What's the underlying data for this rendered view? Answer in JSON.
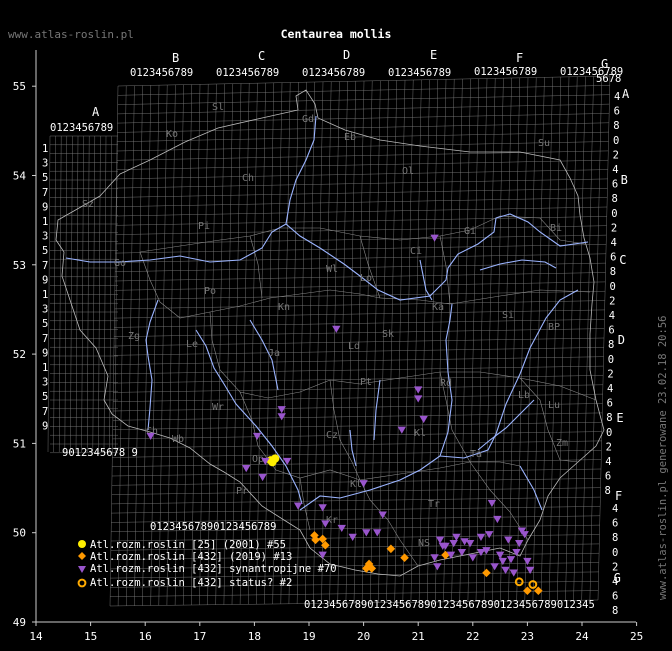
{
  "header": {
    "site": "www.atlas-roslin.pl",
    "title": "Centaurea mollis",
    "footer": "www.atlas-roslin.pl generowane 23.02.18 20:56"
  },
  "axes": {
    "lon_ticks": [
      "14",
      "15",
      "16",
      "17",
      "18",
      "19",
      "20",
      "21",
      "22",
      "23",
      "24",
      "25"
    ],
    "lat_ticks": [
      "49",
      "50",
      "51",
      "52",
      "53",
      "54",
      "55"
    ]
  },
  "grid": {
    "top_letters": [
      "A",
      "B",
      "C",
      "D",
      "E",
      "F",
      "G"
    ],
    "right_letters": [
      "A",
      "B",
      "C",
      "D",
      "E",
      "F",
      "G"
    ],
    "top_digits": "0123456789",
    "left_digits": [
      "1",
      "3",
      "5",
      "7",
      "9",
      "1",
      "3",
      "5",
      "7",
      "9",
      "1",
      "3",
      "5",
      "7",
      "9",
      "1",
      "3",
      "5",
      "7",
      "9"
    ],
    "right_digits": [
      "4",
      "6",
      "8",
      "0",
      "2",
      "4",
      "6",
      "8",
      "0",
      "2",
      "4",
      "6",
      "8",
      "0",
      "2",
      "4",
      "6",
      "8",
      "0",
      "2",
      "4",
      "6",
      "8",
      "0",
      "2",
      "4",
      "6",
      "8"
    ],
    "lower_right_digits": [
      "4",
      "6",
      "8",
      "0",
      "2",
      "4",
      "6",
      "8"
    ],
    "row_a_digits": "0123456789",
    "row_9_digits": "9012345678 9",
    "row_50_digits": "01234567890123456789",
    "bottom_digits": "0123456789012345678901234567890123456789012345",
    "region_codes": [
      {
        "label": "Gd"
      },
      {
        "label": "Eb"
      },
      {
        "label": "Sl"
      },
      {
        "label": "Ko"
      },
      {
        "label": "Su"
      },
      {
        "label": "Ch"
      },
      {
        "label": "Ol"
      },
      {
        "label": "Sz"
      },
      {
        "label": "Pi"
      },
      {
        "label": "Ci"
      },
      {
        "label": "Gi"
      },
      {
        "label": "Bi"
      },
      {
        "label": "Go"
      },
      {
        "label": "Wl"
      },
      {
        "label": "Po"
      },
      {
        "label": "Kn"
      },
      {
        "label": "Zg"
      },
      {
        "label": "Le"
      },
      {
        "label": "Lo"
      },
      {
        "label": "Sk"
      },
      {
        "label": "Ka"
      },
      {
        "label": "Ld"
      },
      {
        "label": "Si"
      },
      {
        "label": "BP"
      },
      {
        "label": "Rd"
      },
      {
        "label": "Pt"
      },
      {
        "label": "Lu"
      },
      {
        "label": "Lb"
      },
      {
        "label": "Wr"
      },
      {
        "label": "Ja"
      },
      {
        "label": "Cz"
      },
      {
        "label": "Kl"
      },
      {
        "label": "Ch"
      },
      {
        "label": "Wb"
      },
      {
        "label": "Op"
      },
      {
        "label": "Zm"
      },
      {
        "label": "Kt"
      },
      {
        "label": "Ta"
      },
      {
        "label": "Kr"
      },
      {
        "label": "Tr"
      },
      {
        "label": "NS"
      },
      {
        "label": "Pr"
      }
    ]
  },
  "legend": [
    {
      "label": "Atl.rozm.roslin [25] (2001) #55",
      "marker": "dot-yellow",
      "color": "#ffee00"
    },
    {
      "label": "Atl.rozm.roslin [432] (2019) #13",
      "marker": "diamond-orange",
      "color": "#ff9900"
    },
    {
      "label": "Atl.rozm.roslin [432] synantropijne #70",
      "marker": "triangle-purple",
      "color": "#9955cc"
    },
    {
      "label": "Atl.rozm.roslin [432] status? #2",
      "marker": "ring-orange",
      "color": "#ffaa00"
    }
  ],
  "colors": {
    "background": "#000000",
    "grid": "#9a9a9a",
    "border": "#bbbbbb",
    "river": "#9bb4ff",
    "text": "#ffffff"
  },
  "chart_data": {
    "type": "scatter",
    "xlabel": "",
    "ylabel": "",
    "xlim": [
      14,
      25
    ],
    "ylim": [
      49,
      55.5
    ],
    "series": [
      {
        "name": "Atl.rozm.roslin [25] (2001) #55",
        "marker": "dot",
        "points": [
          [
            18.3,
            50.81
          ],
          [
            18.38,
            50.83
          ],
          [
            18.33,
            50.79
          ]
        ]
      },
      {
        "name": "Atl.rozm.roslin [432] (2019) #13",
        "marker": "diamond",
        "points": [
          [
            19.1,
            49.97
          ],
          [
            19.12,
            49.92
          ],
          [
            19.25,
            49.93
          ],
          [
            19.3,
            49.86
          ],
          [
            20.05,
            49.6
          ],
          [
            20.1,
            49.65
          ],
          [
            20.15,
            49.6
          ],
          [
            20.5,
            49.82
          ],
          [
            20.75,
            49.72
          ],
          [
            21.5,
            49.75
          ],
          [
            22.25,
            49.55
          ],
          [
            23.0,
            49.35
          ],
          [
            23.2,
            49.35
          ]
        ]
      },
      {
        "name": "Atl.rozm.roslin [432] synantropijne #70",
        "marker": "triangle",
        "points": [
          [
            21.3,
            53.3
          ],
          [
            19.5,
            52.28
          ],
          [
            21.0,
            51.6
          ],
          [
            21.0,
            51.5
          ],
          [
            20.7,
            51.15
          ],
          [
            21.1,
            51.27
          ],
          [
            18.5,
            51.3
          ],
          [
            18.5,
            51.38
          ],
          [
            16.1,
            51.08
          ],
          [
            18.05,
            51.08
          ],
          [
            17.85,
            50.72
          ],
          [
            18.15,
            50.62
          ],
          [
            18.2,
            50.8
          ],
          [
            18.6,
            50.8
          ],
          [
            18.8,
            50.3
          ],
          [
            19.25,
            50.28
          ],
          [
            19.3,
            50.1
          ],
          [
            19.25,
            49.75
          ],
          [
            19.6,
            50.05
          ],
          [
            19.8,
            49.95
          ],
          [
            20.0,
            50.55
          ],
          [
            20.05,
            50.0
          ],
          [
            20.25,
            50.0
          ],
          [
            20.35,
            50.2
          ],
          [
            21.3,
            49.72
          ],
          [
            21.35,
            49.62
          ],
          [
            21.5,
            49.85
          ],
          [
            21.7,
            49.95
          ],
          [
            21.8,
            49.78
          ],
          [
            21.95,
            49.88
          ],
          [
            22.15,
            49.78
          ],
          [
            22.3,
            49.98
          ],
          [
            22.35,
            50.33
          ],
          [
            22.45,
            50.15
          ],
          [
            22.5,
            49.75
          ],
          [
            22.55,
            49.68
          ],
          [
            22.6,
            49.58
          ],
          [
            22.65,
            49.92
          ],
          [
            22.8,
            49.78
          ],
          [
            22.9,
            50.02
          ],
          [
            22.95,
            49.98
          ],
          [
            23.0,
            49.68
          ],
          [
            23.05,
            49.58
          ],
          [
            21.45,
            49.85
          ],
          [
            21.6,
            49.75
          ],
          [
            21.85,
            49.9
          ],
          [
            22.0,
            49.72
          ],
          [
            22.25,
            49.8
          ],
          [
            22.4,
            49.62
          ],
          [
            22.7,
            49.7
          ],
          [
            22.85,
            49.88
          ],
          [
            22.75,
            49.55
          ],
          [
            21.4,
            49.92
          ],
          [
            21.65,
            49.88
          ],
          [
            22.15,
            49.95
          ]
        ]
      },
      {
        "name": "Atl.rozm.roslin [432] status? #2",
        "marker": "ring",
        "points": [
          [
            22.85,
            49.45
          ],
          [
            23.1,
            49.42
          ]
        ]
      }
    ]
  }
}
